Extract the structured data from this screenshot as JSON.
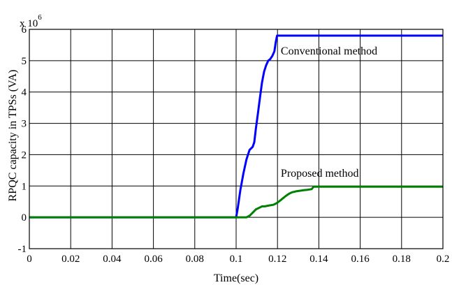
{
  "chart_data": {
    "type": "line",
    "title": "",
    "xlabel": "Time(sec)",
    "ylabel": "RPQC capacity in TPSs (VA)",
    "xlim": [
      0,
      0.2
    ],
    "ylim": [
      -1,
      6
    ],
    "y_multiplier_base": "x 10",
    "y_multiplier_exp": "6",
    "grid": true,
    "x_ticks": [
      0,
      0.02,
      0.04,
      0.06,
      0.08,
      0.1,
      0.12,
      0.14,
      0.16,
      0.18,
      0.2
    ],
    "x_tick_labels": [
      "0",
      "0.02",
      "0.04",
      "0.06",
      "0.08",
      "0.1",
      "0.12",
      "0.14",
      "0.16",
      "0.18",
      "0.2"
    ],
    "y_ticks": [
      -1,
      0,
      1,
      2,
      3,
      4,
      5,
      6
    ],
    "y_tick_labels": [
      "-1",
      "0",
      "1",
      "2",
      "3",
      "4",
      "5",
      "6"
    ],
    "series": [
      {
        "name": "Conventional method",
        "color": "#0000ff",
        "x": [
          0,
          0.1,
          0.1008,
          0.102,
          0.1035,
          0.105,
          0.1065,
          0.108,
          0.1088,
          0.1095,
          0.1105,
          0.1115,
          0.1125,
          0.1135,
          0.1145,
          0.1155,
          0.1165,
          0.1175,
          0.1185,
          0.1192,
          0.1198,
          0.2
        ],
        "values": [
          0,
          0,
          0.3,
          0.85,
          1.4,
          1.85,
          2.15,
          2.25,
          2.4,
          2.8,
          3.3,
          3.8,
          4.3,
          4.65,
          4.85,
          5.0,
          5.05,
          5.15,
          5.3,
          5.6,
          5.8,
          5.8
        ]
      },
      {
        "name": "Proposed method",
        "color": "#008000",
        "x": [
          0,
          0.105,
          0.1065,
          0.108,
          0.1095,
          0.111,
          0.1125,
          0.114,
          0.116,
          0.118,
          0.1195,
          0.121,
          0.1225,
          0.124,
          0.1255,
          0.127,
          0.129,
          0.131,
          0.133,
          0.1345,
          0.1365,
          0.1375,
          0.2
        ],
        "values": [
          0,
          0,
          0.05,
          0.15,
          0.25,
          0.3,
          0.35,
          0.35,
          0.38,
          0.4,
          0.45,
          0.52,
          0.6,
          0.68,
          0.75,
          0.8,
          0.83,
          0.85,
          0.87,
          0.88,
          0.9,
          0.98,
          0.98
        ]
      }
    ],
    "annotations": [
      {
        "text": "Conventional method",
        "x": 0.1216,
        "y": 5.2
      },
      {
        "text": "Proposed method",
        "x": 0.1216,
        "y": 1.3
      }
    ]
  }
}
